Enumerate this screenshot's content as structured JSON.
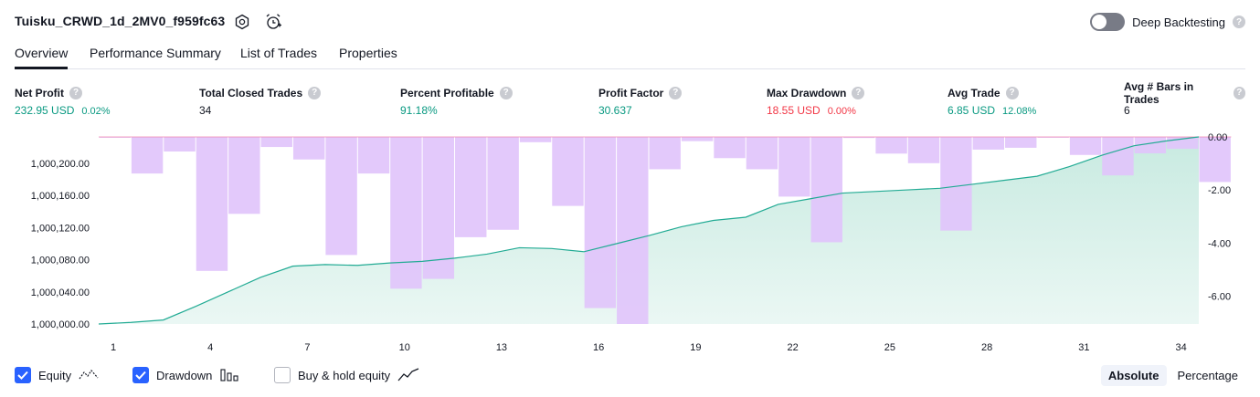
{
  "header": {
    "title": "Tuisku_CRWD_1d_2MV0_f959fc63",
    "icons": [
      "settings-icon",
      "alarm-add-icon"
    ],
    "deep_backtesting_label": "Deep Backtesting",
    "deep_backtesting_on": false,
    "help_glyph": "?"
  },
  "tabs": [
    {
      "label": "Overview",
      "active": true
    },
    {
      "label": "Performance Summary",
      "active": false
    },
    {
      "label": "List of Trades",
      "active": false
    },
    {
      "label": "Properties",
      "active": false
    }
  ],
  "stats": [
    {
      "label": "Net Profit",
      "value": "232.95 USD",
      "sub": "0.02%",
      "color": "green"
    },
    {
      "label": "Total Closed Trades",
      "value": "34",
      "sub": "",
      "color": "dark"
    },
    {
      "label": "Percent Profitable",
      "value": "91.18%",
      "sub": "",
      "color": "green"
    },
    {
      "label": "Profit Factor",
      "value": "30.637",
      "sub": "",
      "color": "green"
    },
    {
      "label": "Max Drawdown",
      "value": "18.55 USD",
      "sub": "0.00%",
      "color": "red"
    },
    {
      "label": "Avg Trade",
      "value": "6.85 USD",
      "sub": "12.08%",
      "color": "green"
    },
    {
      "label": "Avg # Bars in Trades",
      "value": "6",
      "sub": "",
      "color": "dark"
    }
  ],
  "chart_data": {
    "type": "line",
    "equity": {
      "x": [
        1,
        2,
        3,
        4,
        5,
        6,
        7,
        8,
        9,
        10,
        11,
        12,
        13,
        14,
        15,
        16,
        17,
        18,
        19,
        20,
        21,
        22,
        23,
        24,
        25,
        26,
        27,
        28,
        29,
        30,
        31,
        32,
        33,
        34,
        35
      ],
      "y": [
        1000000,
        1000002,
        1000005,
        1000022,
        1000040,
        1000058,
        1000072,
        1000074,
        1000073,
        1000076,
        1000078,
        1000082,
        1000087,
        1000095,
        1000094,
        1000090,
        1000100,
        1000110,
        1000121,
        1000129,
        1000133,
        1000149,
        1000156,
        1000163,
        1000165,
        1000167,
        1000169,
        1000174,
        1000179,
        1000184,
        1000196,
        1000210,
        1000222,
        1000228,
        1000233
      ]
    },
    "drawdown": {
      "x": [
        1,
        2,
        3,
        4,
        5,
        6,
        7,
        8,
        9,
        10,
        11,
        12,
        13,
        14,
        15,
        16,
        17,
        18,
        19,
        20,
        21,
        22,
        23,
        24,
        25,
        26,
        27,
        28,
        29,
        30,
        31,
        32,
        33,
        34,
        35
      ],
      "y": [
        -0.03,
        -1.38,
        -0.55,
        -5.05,
        -2.9,
        -0.38,
        -0.85,
        -4.45,
        -1.38,
        -5.72,
        -5.35,
        -3.78,
        -3.5,
        -0.2,
        -2.6,
        -6.45,
        -7.05,
        -1.22,
        -0.16,
        -0.8,
        -1.22,
        -2.25,
        -3.97,
        -0.04,
        -0.63,
        -0.99,
        -3.53,
        -0.48,
        -0.41,
        -0.03,
        -0.68,
        -1.45,
        -0.62,
        -0.45,
        -1.7
      ]
    },
    "y_left_ticks": [
      "1,000,000.00",
      "1,000,040.00",
      "1,000,080.00",
      "1,000,120.00",
      "1,000,160.00",
      "1,000,200.00"
    ],
    "y_left_tick_values": [
      1000000,
      1000040,
      1000080,
      1000120,
      1000160,
      1000200
    ],
    "y_right_ticks": [
      "0.00",
      "-2.00",
      "-4.00",
      "-6.00"
    ],
    "y_right_tick_values": [
      0,
      -2,
      -4,
      -6
    ],
    "x_ticks": [
      "1",
      "4",
      "7",
      "10",
      "13",
      "16",
      "19",
      "22",
      "25",
      "28",
      "31",
      "34"
    ],
    "x_tick_values": [
      1,
      4,
      7,
      10,
      13,
      16,
      19,
      22,
      25,
      28,
      31,
      34
    ],
    "y_left_range": [
      1000000,
      1000233
    ],
    "y_right_range": [
      -7.05,
      0
    ],
    "colors": {
      "equity_line": "#22ab94",
      "equity_fill": "#c5e9df",
      "drawdown_bar": "#e1c4fb",
      "drawdown_overlap": "#b0b5ea",
      "baseline": "#f06a9a"
    }
  },
  "legend": {
    "items": [
      {
        "label": "Equity",
        "checked": true,
        "icon": "equity-line-icon"
      },
      {
        "label": "Drawdown",
        "checked": true,
        "icon": "drawdown-bars-icon"
      },
      {
        "label": "Buy & hold equity",
        "checked": false,
        "icon": "buy-hold-line-icon"
      }
    ],
    "modes": [
      {
        "label": "Absolute",
        "active": true
      },
      {
        "label": "Percentage",
        "active": false
      }
    ]
  }
}
